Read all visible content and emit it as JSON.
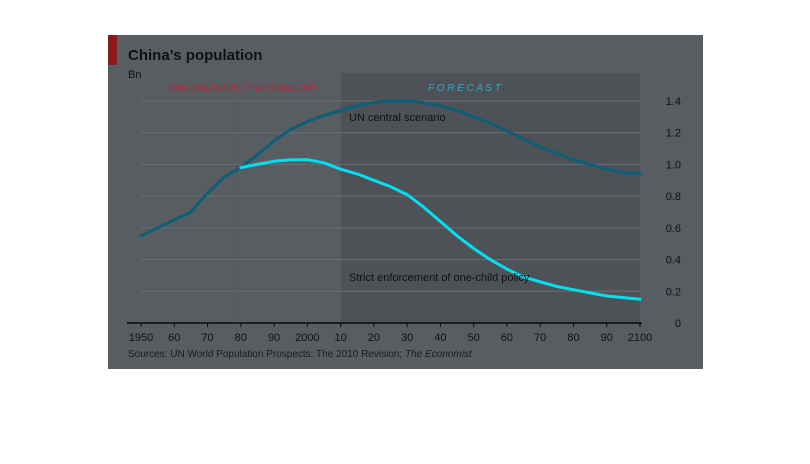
{
  "header": {
    "title": "China’s population",
    "unit": "Bn"
  },
  "annotations": {
    "one_child": "ONE-CHILD POLICY INTRODUCED",
    "forecast": "F O R E C A S T"
  },
  "source": {
    "prefix": "Sources: UN World Population Prospects: The 2010 Revision; ",
    "publication": "The Economist"
  },
  "colors": {
    "panel": "#585d61",
    "forecast_zone": "#4e5256",
    "un_line": "#0b5f79",
    "strict_line": "#00e0f0",
    "policy_marker": "#c0203a",
    "gridline": "#6a6f73"
  },
  "chart_data": {
    "type": "line",
    "title": "China’s population",
    "ylabel": "Bn",
    "ylim": [
      0,
      1.4
    ],
    "xlim": [
      1950,
      2100
    ],
    "x_tick_labels": [
      "1950",
      "60",
      "70",
      "80",
      "90",
      "2000",
      "10",
      "20",
      "30",
      "40",
      "50",
      "60",
      "70",
      "80",
      "90",
      "2100"
    ],
    "y_tick_labels": [
      "0",
      "0.2",
      "0.4",
      "0.6",
      "0.8",
      "1.0",
      "1.2",
      "1.4"
    ],
    "forecast_start": 2010,
    "policy_year": 1979,
    "series": [
      {
        "name": "UN central scenario",
        "color": "#0b5f79",
        "x": [
          1950,
          1955,
          1960,
          1965,
          1970,
          1975,
          1980,
          1985,
          1990,
          1995,
          2000,
          2005,
          2010,
          2015,
          2020,
          2025,
          2030,
          2035,
          2040,
          2045,
          2050,
          2055,
          2060,
          2065,
          2070,
          2075,
          2080,
          2085,
          2090,
          2095,
          2100
        ],
        "y": [
          0.55,
          0.6,
          0.65,
          0.7,
          0.82,
          0.92,
          0.98,
          1.06,
          1.15,
          1.22,
          1.27,
          1.31,
          1.34,
          1.37,
          1.39,
          1.4,
          1.4,
          1.39,
          1.37,
          1.34,
          1.3,
          1.26,
          1.21,
          1.16,
          1.11,
          1.07,
          1.03,
          1.0,
          0.97,
          0.95,
          0.94
        ]
      },
      {
        "name": "Strict enforcement of one-child policy",
        "color": "#00e0f0",
        "x": [
          1980,
          1985,
          1990,
          1995,
          2000,
          2005,
          2010,
          2015,
          2020,
          2025,
          2030,
          2035,
          2040,
          2045,
          2050,
          2055,
          2060,
          2065,
          2070,
          2075,
          2080,
          2085,
          2090,
          2095,
          2100
        ],
        "y": [
          0.98,
          1.0,
          1.02,
          1.03,
          1.03,
          1.01,
          0.97,
          0.94,
          0.9,
          0.86,
          0.81,
          0.73,
          0.64,
          0.55,
          0.47,
          0.4,
          0.34,
          0.29,
          0.26,
          0.23,
          0.21,
          0.19,
          0.17,
          0.16,
          0.15
        ]
      }
    ]
  }
}
